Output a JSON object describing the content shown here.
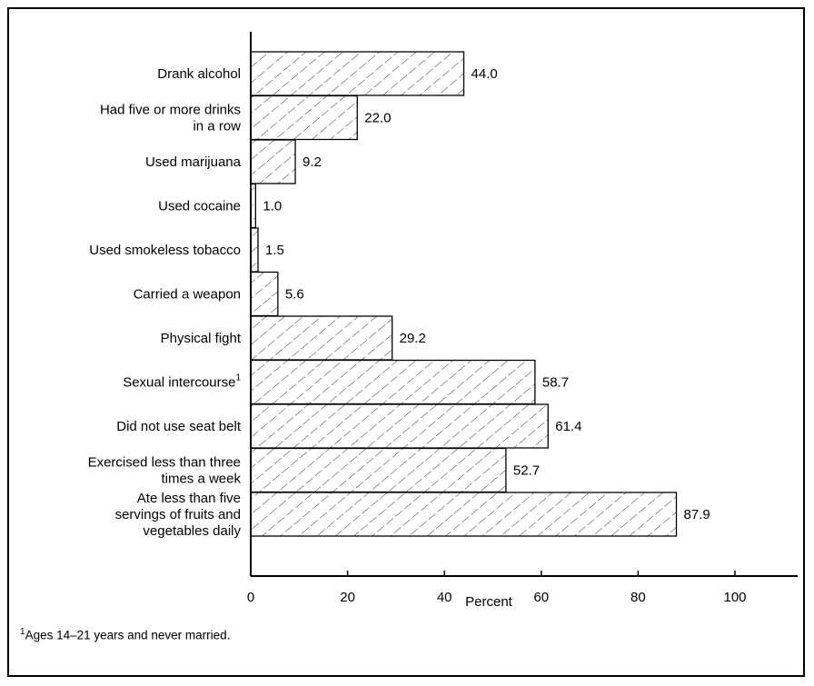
{
  "chart_data": {
    "type": "bar",
    "orientation": "horizontal",
    "categories": [
      [
        "Drank alcohol"
      ],
      [
        "Had five or more drinks",
        "in a row"
      ],
      [
        "Used marijuana"
      ],
      [
        "Used cocaine"
      ],
      [
        "Used smokeless tobacco"
      ],
      [
        "Carried a weapon"
      ],
      [
        "Physical fight"
      ],
      [
        "Sexual intercourse"
      ],
      [
        "Did not use seat belt"
      ],
      [
        "Exercised less than three",
        "times a week"
      ],
      [
        "Ate less than five",
        "servings of fruits and",
        "vegetables daily"
      ]
    ],
    "category_superscripts": [
      "",
      "",
      "",
      "",
      "",
      "",
      "",
      "1",
      "",
      "",
      ""
    ],
    "values": [
      44.0,
      22.0,
      9.2,
      1.0,
      1.5,
      5.6,
      29.2,
      58.7,
      61.4,
      52.7,
      87.9
    ],
    "value_labels": [
      "44.0",
      "22.0",
      "9.2",
      "1.0",
      "1.5",
      "5.6",
      "29.2",
      "58.7",
      "61.4",
      "52.7",
      "87.9"
    ],
    "xlabel": "Percent",
    "xlim": [
      0,
      110
    ],
    "xticks": [
      0,
      20,
      40,
      60,
      80,
      100
    ],
    "grid": false,
    "bar_fill": "hatched"
  },
  "footnote": {
    "marker": "1",
    "text": "Ages 14–21 years and never married."
  },
  "colors": {
    "bar_stroke": "#000000",
    "hatch": "#000000",
    "background": "#ffffff"
  }
}
